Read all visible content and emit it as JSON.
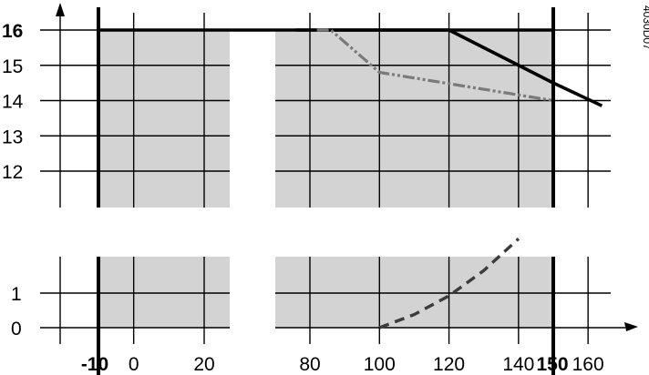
{
  "chart_data": [
    {
      "type": "line",
      "panel": "upper",
      "y_ticks": [
        "12",
        "13",
        "14",
        "15",
        "16"
      ],
      "y_ticks_bold": [
        "16"
      ],
      "ylim": [
        11.1,
        16.6
      ],
      "x_ticks": [
        "-10",
        "0",
        "20",
        "80",
        "100",
        "120",
        "140",
        "150",
        "160"
      ],
      "x_ticks_bold": [
        "-10",
        "150"
      ],
      "x_break_between": [
        26,
        76
      ],
      "shaded_region": {
        "x": [
          -10,
          150
        ],
        "y_top": 16
      },
      "series": [
        {
          "style": "solid",
          "x": [
            -10,
            150
          ],
          "y": [
            16,
            16
          ]
        },
        {
          "style": "solid",
          "x": [
            76,
            120,
            150,
            164
          ],
          "y": [
            16,
            16,
            14.5,
            13.85
          ]
        },
        {
          "style": "dash-dot-dot",
          "x": [
            82,
            86,
            100,
            150
          ],
          "y": [
            16,
            16,
            14.8,
            14.0
          ]
        }
      ]
    },
    {
      "type": "line",
      "panel": "lower",
      "y_ticks": [
        "0",
        "1"
      ],
      "ylim": [
        -0.35,
        2.0
      ],
      "x_ticks": [
        "-10",
        "0",
        "20",
        "80",
        "100",
        "120",
        "140",
        "150",
        "160"
      ],
      "x_ticks_bold": [
        "-10",
        "150"
      ],
      "x_break_between": [
        26,
        76
      ],
      "shaded_region": {
        "x": [
          -10,
          150
        ],
        "y_top": 2.0
      },
      "series": [
        {
          "style": "dashed",
          "x": [
            100,
            110,
            120,
            130,
            140
          ],
          "y": [
            0,
            0.38,
            0.92,
            1.65,
            2.57
          ]
        }
      ]
    }
  ],
  "figure_code": "4030D07"
}
